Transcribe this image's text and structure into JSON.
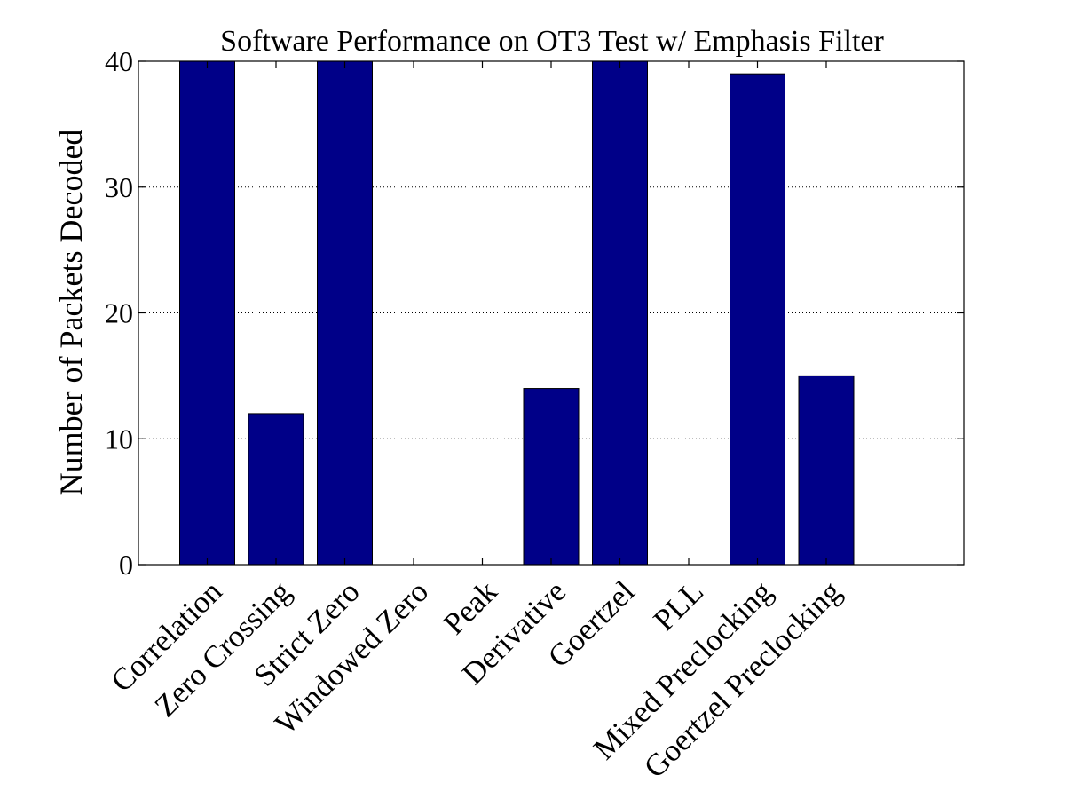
{
  "chart_data": {
    "type": "bar",
    "title": "Software Performance on OT3 Test w/ Emphasis Filter",
    "xlabel": "",
    "ylabel": "Number of Packets Decoded",
    "categories": [
      "Correlation",
      "Zero Crossing",
      "Strict Zero",
      "Windowed Zero",
      "Peak",
      "Derivative",
      "Goertzel",
      "PLL",
      "Mixed Preclocking",
      "Goertzel Preclocking"
    ],
    "values": [
      40,
      12,
      40,
      0,
      0,
      14,
      40,
      0,
      39,
      15
    ],
    "ylim": [
      0,
      40
    ],
    "yticks": [
      0,
      10,
      20,
      30,
      40
    ],
    "grid": "y-dotted",
    "bar_color": "#000088",
    "legend": "none"
  }
}
